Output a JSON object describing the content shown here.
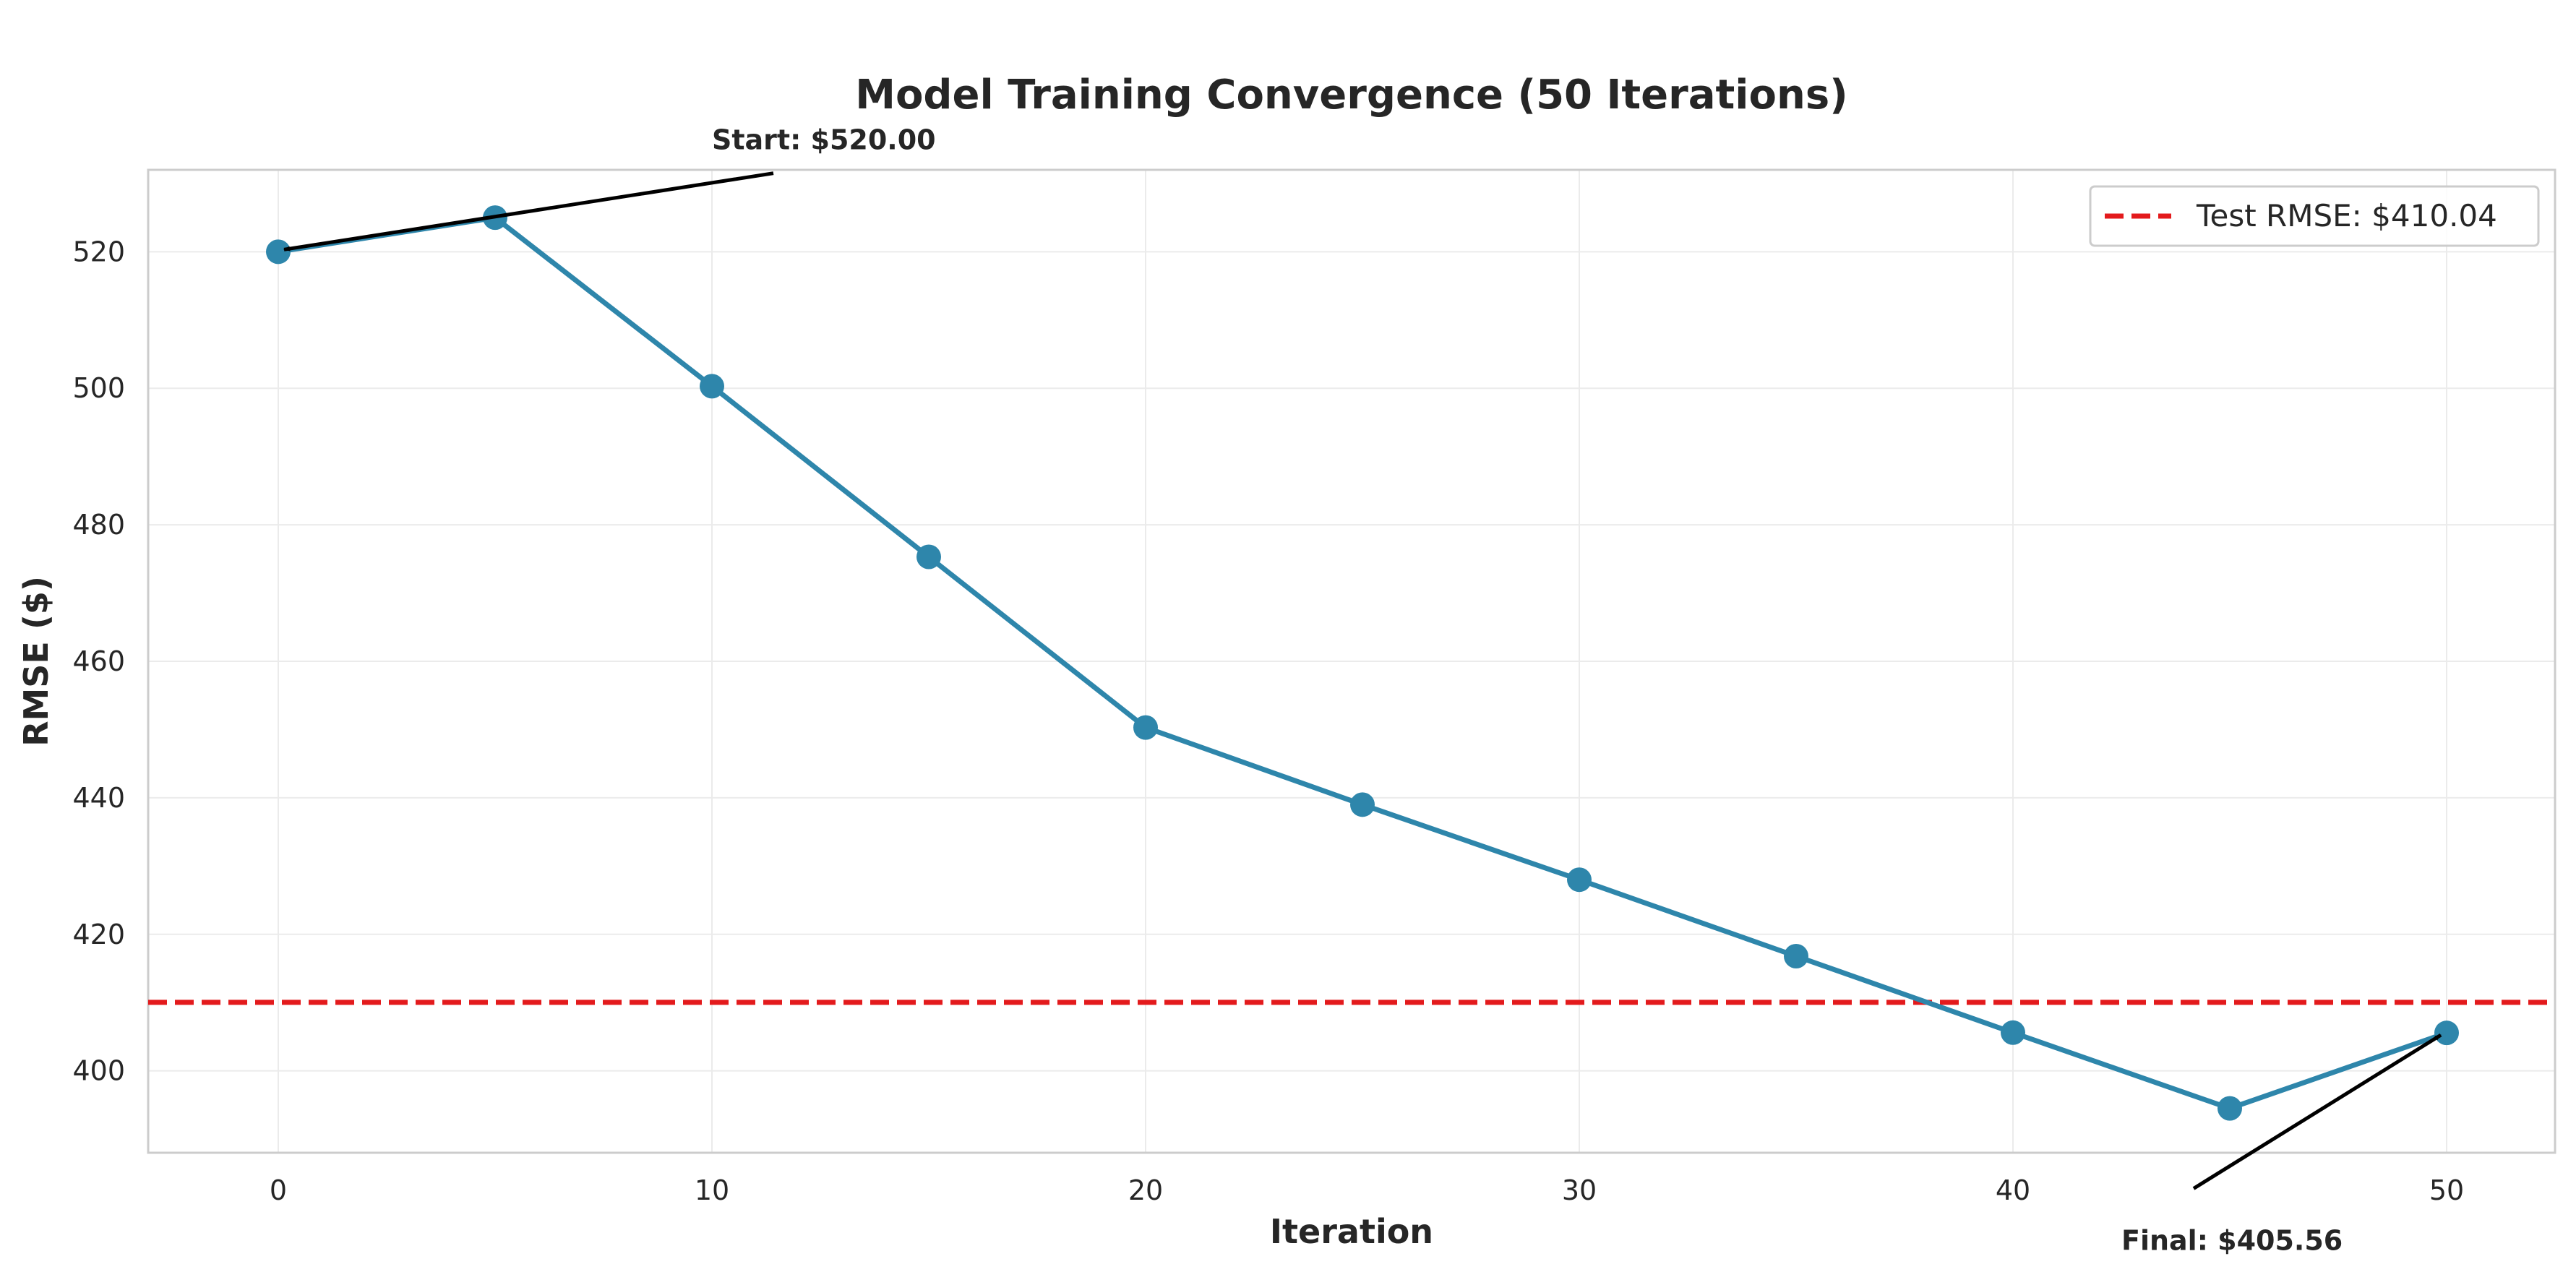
{
  "chart_data": {
    "type": "line",
    "title": "Model Training Convergence (50 Iterations)",
    "xlabel": "Iteration",
    "ylabel": "RMSE ($)",
    "xlim": [
      -3,
      52.5
    ],
    "ylim": [
      388,
      532
    ],
    "x_ticks": [
      0,
      10,
      20,
      30,
      40,
      50
    ],
    "y_ticks": [
      400,
      420,
      440,
      460,
      480,
      500,
      520
    ],
    "grid": true,
    "legend_position": "top-right",
    "series": [
      {
        "x": [
          0,
          5,
          10,
          15,
          20,
          25,
          30,
          35,
          40,
          45,
          50
        ],
        "values": [
          520.0,
          525.0,
          500.3,
          475.3,
          450.3,
          439.0,
          428.0,
          416.8,
          405.6,
          394.5,
          405.56
        ],
        "color": "#2e86ab"
      }
    ],
    "reference_lines": [
      {
        "name": "Test RMSE: $410.04",
        "value": 410.04,
        "color": "#e31a1c",
        "style": "dashed"
      }
    ],
    "annotations": [
      {
        "text": "Start: $520.00",
        "x": 0,
        "y": 520.0,
        "text_x": 10,
        "text_y": 535
      },
      {
        "text": "Final: $405.56",
        "x": 50,
        "y": 405.56,
        "text_x": 42.5,
        "text_y": 378
      }
    ]
  }
}
